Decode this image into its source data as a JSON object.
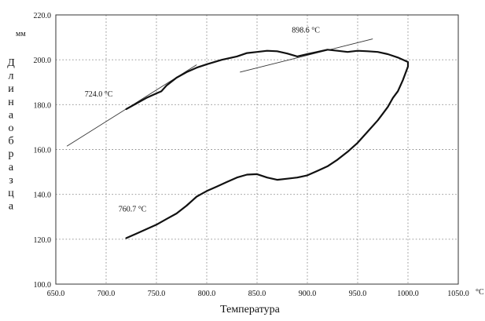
{
  "chart_data": {
    "type": "line",
    "title": "",
    "xlabel": "Температура",
    "ylabel": "Длина образца",
    "x_unit": "°C",
    "y_unit": "мм",
    "xlim": [
      650,
      1050
    ],
    "ylim": [
      100,
      220
    ],
    "grid": true,
    "x_ticks": [
      "650.0",
      "700.0",
      "750.0",
      "800.0",
      "850.0",
      "900.0",
      "950.0",
      "1000.0",
      "1050.0"
    ],
    "y_ticks": [
      "100.0",
      "120.0",
      "140.0",
      "160.0",
      "180.0",
      "200.0",
      "220.0"
    ],
    "series": [
      {
        "x": [
          720,
          730,
          740,
          745,
          750,
          755,
          760,
          770,
          780,
          790,
          800,
          815,
          830,
          840,
          850,
          860,
          870,
          880,
          890,
          900,
          910,
          920,
          930,
          940,
          950,
          960,
          970,
          980,
          990,
          1000,
          1000,
          995,
          990,
          985,
          980,
          975,
          970,
          960,
          950,
          940,
          930,
          920,
          910,
          900,
          890,
          880,
          870,
          860,
          850,
          840,
          830,
          820,
          810,
          800,
          790,
          780,
          770,
          760,
          750,
          740,
          730,
          720
        ],
        "values": [
          178,
          180.5,
          183,
          184,
          185,
          186,
          188.5,
          192,
          194.5,
          196.5,
          198,
          200,
          201.5,
          203,
          203.5,
          204,
          203.8,
          202.8,
          201.5,
          202.5,
          203.5,
          204.5,
          204,
          203.5,
          204,
          203.8,
          203.5,
          202.5,
          201,
          199,
          197,
          191,
          186,
          183,
          179,
          176,
          173,
          168,
          163,
          159,
          155.5,
          152.5,
          150.5,
          148.5,
          147.5,
          147,
          146.5,
          147.5,
          149,
          148.8,
          147.5,
          145.5,
          143.5,
          141.5,
          139,
          135,
          131.5,
          129,
          126.5,
          124.5,
          122.5,
          120.5
        ]
      }
    ],
    "annotations": [
      {
        "text": "724.0 °C",
        "x": 724,
        "y": 180.5
      },
      {
        "text": "898.6 °C",
        "x": 898.6,
        "y": 202.3
      },
      {
        "text": "760.7 °C",
        "x": 760.7,
        "y": 126
      }
    ],
    "tangent_lines": [
      {
        "x": [
          661,
          790
        ],
        "y": [
          161.5,
          197.8
        ]
      },
      {
        "x": [
          833,
          965
        ],
        "y": [
          194.5,
          209.3
        ]
      }
    ]
  }
}
